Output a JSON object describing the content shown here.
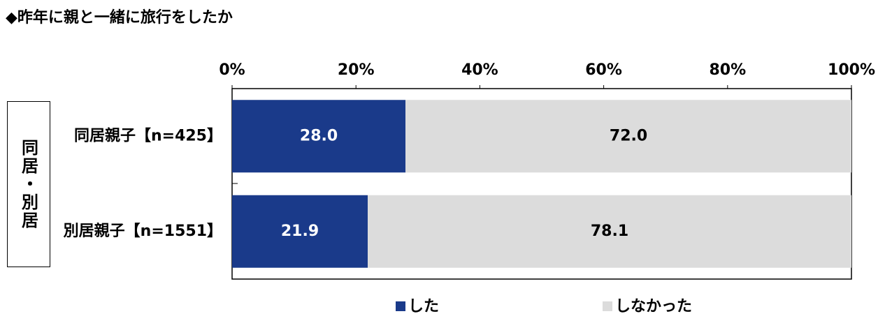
{
  "chart_data": {
    "type": "stacked-bar-horizontal",
    "title": "◆昨年に親と一緒に旅行をしたか",
    "group_label": "同居・別居",
    "categories": [
      "同居親子【n=425】",
      "別居親子【n=1551】"
    ],
    "series": [
      {
        "name": "した",
        "color": "#1a3a8a",
        "values": [
          28.0,
          21.9
        ],
        "value_labels": [
          "28.0",
          "21.9"
        ],
        "label_color": "#ffffff"
      },
      {
        "name": "しなかった",
        "color": "#dcdcdc",
        "values": [
          72.0,
          78.1
        ],
        "value_labels": [
          "72.0",
          "78.1"
        ],
        "label_color": "#000000"
      }
    ],
    "xlim": [
      0,
      100
    ],
    "xticks": [
      {
        "value": 0,
        "label": "0%"
      },
      {
        "value": 20,
        "label": "20%"
      },
      {
        "value": 40,
        "label": "40%"
      },
      {
        "value": 60,
        "label": "60%"
      },
      {
        "value": 80,
        "label": "80%"
      },
      {
        "value": 100,
        "label": "100%"
      }
    ]
  }
}
